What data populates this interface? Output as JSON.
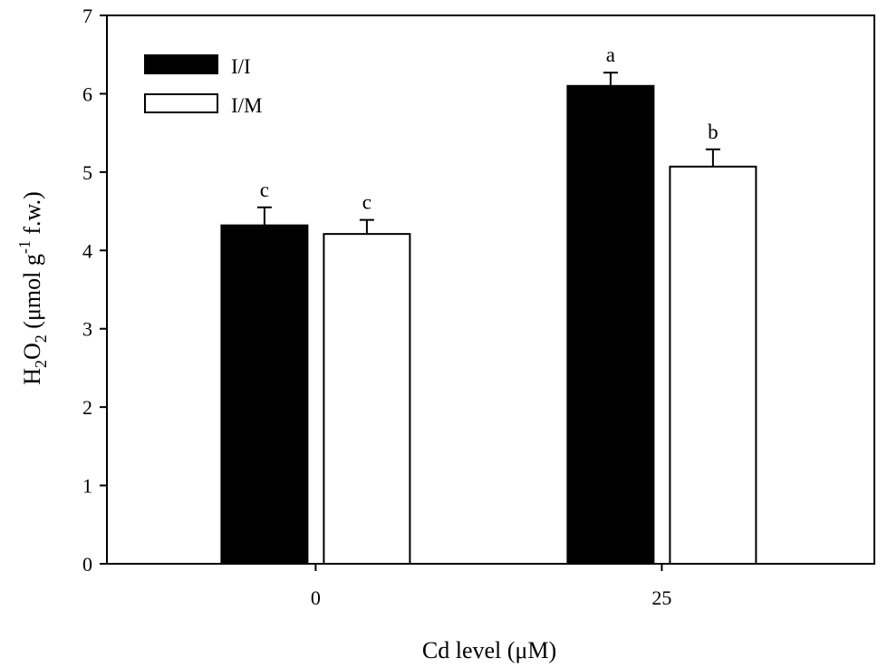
{
  "chart_data": {
    "type": "bar",
    "categories": [
      "0",
      "25"
    ],
    "series": [
      {
        "name": "I/I",
        "color": "#000000",
        "values": [
          4.32,
          6.1
        ],
        "errors": [
          0.23,
          0.17
        ],
        "letters": [
          "c",
          "a"
        ]
      },
      {
        "name": "I/M",
        "color": "#ffffff",
        "values": [
          4.21,
          5.07
        ],
        "errors": [
          0.18,
          0.22
        ],
        "letters": [
          "c",
          "b"
        ]
      }
    ],
    "xlabel": "Cd level (μM)",
    "ylabel": {
      "prefix": "H",
      "sub1": "2",
      "mid": "O",
      "sub2": "2",
      "unit_prefix": " (μmol g",
      "sup": "-1",
      "unit_suffix": " f.w.)"
    },
    "ylim": [
      0,
      7
    ],
    "yticks": [
      0,
      1,
      2,
      3,
      4,
      5,
      6,
      7
    ],
    "grid": false,
    "legend_position": "top-left"
  }
}
